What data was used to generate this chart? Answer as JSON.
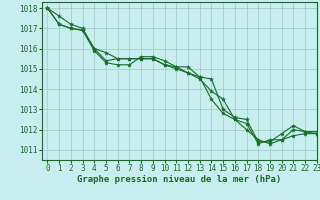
{
  "title": "Graphe pression niveau de la mer (hPa)",
  "bg_color": "#c8eef0",
  "grid_color": "#99ccbb",
  "line_color": "#1a6b2a",
  "marker_color": "#1a6b2a",
  "xlim": [
    -0.5,
    23
  ],
  "ylim": [
    1010.5,
    1018.3
  ],
  "yticks": [
    1011,
    1012,
    1013,
    1014,
    1015,
    1016,
    1017,
    1018
  ],
  "xticks": [
    0,
    1,
    2,
    3,
    4,
    5,
    6,
    7,
    8,
    9,
    10,
    11,
    12,
    13,
    14,
    15,
    16,
    17,
    18,
    19,
    20,
    21,
    22,
    23
  ],
  "series": [
    [
      1018.0,
      1017.6,
      1017.2,
      1017.0,
      1016.0,
      1015.8,
      1015.5,
      1015.5,
      1015.5,
      1015.5,
      1015.2,
      1015.1,
      1015.1,
      1014.6,
      1013.5,
      1012.8,
      1012.5,
      1012.3,
      1011.3,
      1011.5,
      1011.5,
      1012.0,
      1011.9,
      1011.9
    ],
    [
      1018.0,
      1017.2,
      1017.0,
      1016.9,
      1015.9,
      1015.3,
      1015.2,
      1015.2,
      1015.6,
      1015.6,
      1015.4,
      1015.1,
      1014.8,
      1014.6,
      1014.5,
      1013.0,
      1012.6,
      1012.5,
      1011.4,
      1011.4,
      1011.8,
      1012.2,
      1011.9,
      1011.8
    ],
    [
      1018.0,
      1017.2,
      1017.0,
      1016.9,
      1016.0,
      1015.4,
      1015.5,
      1015.5,
      1015.5,
      1015.5,
      1015.2,
      1015.0,
      1014.8,
      1014.5,
      1013.9,
      1013.5,
      1012.5,
      1012.0,
      1011.5,
      1011.3,
      1011.5,
      1011.7,
      1011.8,
      1011.8
    ]
  ],
  "title_fontsize": 6.5,
  "tick_fontsize": 5.5
}
